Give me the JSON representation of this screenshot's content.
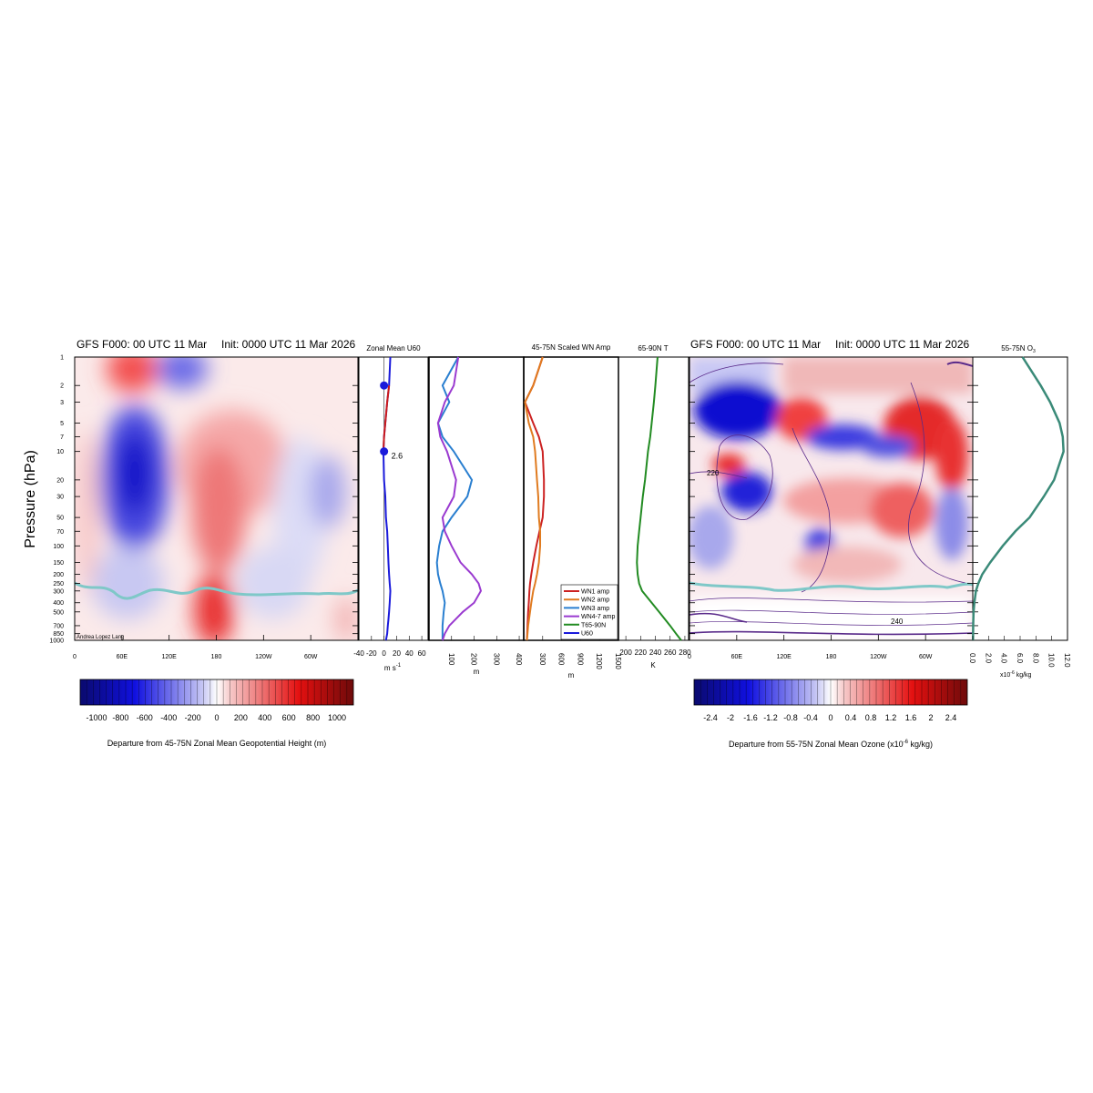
{
  "left_panel": {
    "title_left": "GFS F000: 00 UTC 11 Mar",
    "title_right": "Init: 0000 UTC 11 Mar 2026",
    "ylabel": "Pressure (hPa)",
    "credit": "Andrea Lopez Lang",
    "colorbar_label": "Departure from 45-75N Zonal Mean Geopotential Height (m)",
    "colorbar_ticks": [
      "-1000",
      "-800",
      "-600",
      "-400",
      "-200",
      "0",
      "200",
      "400",
      "600",
      "800",
      "1000"
    ]
  },
  "right_panel": {
    "title_left": "GFS F000: 00 UTC 11 Mar",
    "title_right": "Init: 0000 UTC 11 Mar 2026",
    "colorbar_label": "Departure from 55-75N Zonal Mean Ozone (x10",
    "colorbar_label_sup": "-6",
    "colorbar_label_end": " kg/kg)",
    "colorbar_ticks": [
      "-2.4",
      "-2",
      "-1.6",
      "-1.2",
      "-0.8",
      "-0.4",
      "0",
      "0.4",
      "0.8",
      "1.2",
      "1.6",
      "2",
      "2.4"
    ],
    "contour_labels": [
      "220",
      "240"
    ]
  },
  "pressure_ticks": [
    {
      "p": 1,
      "label": "1"
    },
    {
      "p": 2,
      "label": "2"
    },
    {
      "p": 3,
      "label": "3"
    },
    {
      "p": 5,
      "label": "5"
    },
    {
      "p": 7,
      "label": "7"
    },
    {
      "p": 10,
      "label": "10"
    },
    {
      "p": 20,
      "label": "20"
    },
    {
      "p": 30,
      "label": "30"
    },
    {
      "p": 50,
      "label": "50"
    },
    {
      "p": 70,
      "label": "70"
    },
    {
      "p": 100,
      "label": "100"
    },
    {
      "p": 150,
      "label": "150"
    },
    {
      "p": 200,
      "label": "200"
    },
    {
      "p": 250,
      "label": "250"
    },
    {
      "p": 300,
      "label": "300"
    },
    {
      "p": 400,
      "label": "400"
    },
    {
      "p": 500,
      "label": "500"
    },
    {
      "p": 700,
      "label": "700"
    },
    {
      "p": 850,
      "label": "850"
    },
    {
      "p": 1000,
      "label": "1000"
    }
  ],
  "longitude_ticks": [
    {
      "lon": 0,
      "label": "0"
    },
    {
      "lon": 60,
      "label": "60E"
    },
    {
      "lon": 120,
      "label": "120E"
    },
    {
      "lon": 180,
      "label": "180"
    },
    {
      "lon": 240,
      "label": "120W"
    },
    {
      "lon": 300,
      "label": "60W"
    }
  ],
  "colors": {
    "u60": "#1a1adb",
    "u60_neg": "#cc1a1a",
    "wn1": "#cc2222",
    "wn2": "#e07b20",
    "wn3": "#2a7fd0",
    "wn47": "#9a3ad0",
    "t": "#228b22",
    "o3": "#3a8a78",
    "tropopause": "#7fc8c8"
  },
  "chart_data": [
    {
      "type": "line",
      "title": "Zonal Mean U60",
      "xlabel": "m s",
      "xlabel_sup": "-1",
      "xlim": [
        -40,
        70
      ],
      "xticks": [
        "-40",
        "-20",
        "0",
        "20",
        "40",
        "60"
      ],
      "series": [
        {
          "name": "U60",
          "x": [
            10,
            8,
            5,
            2,
            0,
            -1,
            0,
            2,
            3,
            5,
            6,
            7,
            8,
            9,
            10,
            9,
            8,
            7,
            6,
            5,
            3
          ],
          "p": [
            1,
            2,
            3,
            5,
            7,
            10,
            20,
            30,
            50,
            70,
            100,
            150,
            200,
            250,
            300,
            400,
            500,
            600,
            700,
            850,
            1000
          ]
        }
      ],
      "markers": [
        {
          "p": 2,
          "x": 0
        },
        {
          "p": 10,
          "x": 0
        }
      ],
      "annotation": "2.6"
    },
    {
      "type": "line",
      "title": "45-75N Scaled WN Amp",
      "xlabel": "m",
      "xlim_wn3": [
        0,
        420
      ],
      "xticks_wn3": [
        "100",
        "200",
        "300",
        "400"
      ],
      "xlim_wn1": [
        0,
        1500
      ],
      "xticks_wn1": [
        "300",
        "600",
        "900",
        "1200",
        "1500"
      ],
      "legend": [
        "WN1 amp",
        "WN2 amp",
        "WN3 amp",
        "WN4-7 amp",
        "T65-90N",
        "U60"
      ],
      "p": [
        1,
        2,
        3,
        5,
        7,
        10,
        20,
        30,
        50,
        70,
        100,
        150,
        200,
        250,
        300,
        400,
        500,
        700,
        850,
        1000
      ],
      "series": [
        {
          "name": "WN3 amp",
          "values": [
            130,
            60,
            90,
            40,
            60,
            110,
            190,
            170,
            100,
            60,
            45,
            35,
            40,
            50,
            60,
            70,
            65,
            60,
            60,
            60
          ]
        },
        {
          "name": "WN4-7 amp",
          "values": [
            130,
            110,
            70,
            40,
            50,
            80,
            120,
            110,
            60,
            70,
            100,
            140,
            190,
            220,
            230,
            200,
            150,
            90,
            70,
            60
          ]
        },
        {
          "name": "WN1 amp",
          "values": [
            300,
            150,
            20,
            150,
            240,
            300,
            320,
            320,
            300,
            250,
            200,
            150,
            120,
            100,
            90,
            80,
            70,
            60,
            55,
            50
          ]
        },
        {
          "name": "WN2 amp",
          "values": [
            300,
            150,
            20,
            80,
            150,
            180,
            210,
            230,
            240,
            260,
            260,
            240,
            210,
            180,
            150,
            120,
            100,
            70,
            60,
            50
          ]
        }
      ]
    },
    {
      "type": "line",
      "title": "65-90N T",
      "xlabel": "K",
      "xlim": [
        190,
        285
      ],
      "xticks": [
        "200",
        "220",
        "240",
        "260",
        "280"
      ],
      "series": [
        {
          "name": "T65-90N",
          "p": [
            1,
            2,
            3,
            5,
            7,
            10,
            20,
            30,
            50,
            70,
            100,
            150,
            200,
            250,
            300,
            400,
            500,
            700,
            850,
            1000
          ],
          "values": [
            243,
            240,
            238,
            235,
            233,
            230,
            226,
            223,
            220,
            218,
            216,
            215,
            216,
            218,
            222,
            235,
            245,
            260,
            268,
            275
          ]
        }
      ]
    },
    {
      "type": "line",
      "title": "55-75N O",
      "title_sub": "3",
      "xlabel": "x10",
      "xlabel_sup": "-6",
      "xlabel_end": " kg/kg",
      "xlim": [
        0,
        12
      ],
      "xticks": [
        "0.0",
        "2.0",
        "4.0",
        "6.0",
        "8.0",
        "10.0",
        "12.0"
      ],
      "series": [
        {
          "name": "O3",
          "p": [
            1,
            2,
            3,
            5,
            7,
            10,
            20,
            30,
            50,
            70,
            100,
            150,
            200,
            250,
            300,
            400,
            500,
            700,
            850,
            1000
          ],
          "values": [
            6.3,
            8.6,
            9.8,
            11.0,
            11.4,
            11.5,
            10.3,
            9.0,
            7.2,
            5.4,
            3.8,
            2.2,
            1.2,
            0.7,
            0.4,
            0.2,
            0.1,
            0.05,
            0.04,
            0.03
          ]
        }
      ]
    }
  ]
}
